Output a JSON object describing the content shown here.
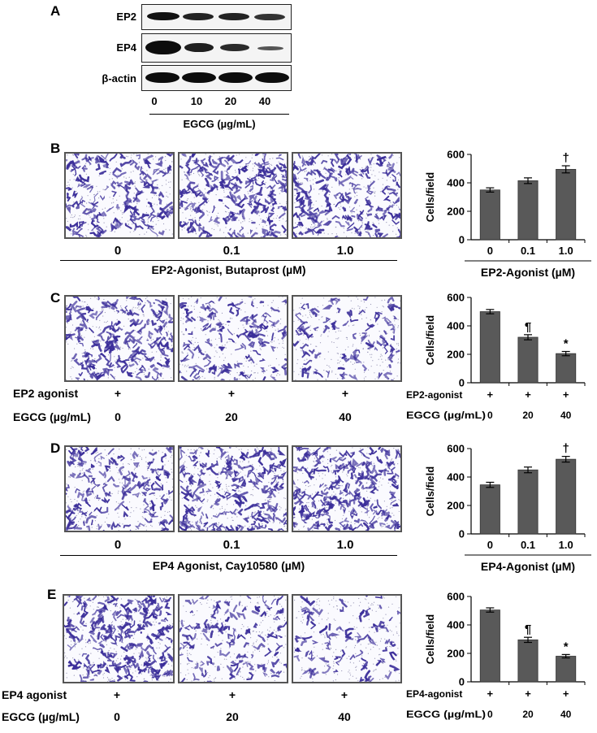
{
  "panel_letters": {
    "a": "A",
    "b": "B",
    "c": "C",
    "d": "D",
    "e": "E"
  },
  "panel_a": {
    "rows": [
      "EP2",
      "EP4",
      "β-actin"
    ],
    "lanes": [
      "0",
      "10",
      "20",
      "40"
    ],
    "treatment": "EGCG (µg/mL)"
  },
  "panel_b": {
    "image_labels": [
      "0",
      "0.1",
      "1.0"
    ],
    "caption": "EP2-Agonist,  Butaprost (µM)"
  },
  "panel_c": {
    "row1_label": "EP2 agonist",
    "row1_values": [
      "+",
      "+",
      "+"
    ],
    "row2_label": "EGCG (µg/mL)",
    "row2_values": [
      "0",
      "20",
      "40"
    ]
  },
  "panel_d": {
    "image_labels": [
      "0",
      "0.1",
      "1.0"
    ],
    "caption": "EP4 Agonist, Cay10580  (µM)"
  },
  "panel_e": {
    "row1_label": "EP4 agonist",
    "row1_values": [
      "+",
      "+",
      "+"
    ],
    "row2_label": "EGCG (µg/mL)",
    "row2_values": [
      "0",
      "20",
      "40"
    ]
  },
  "colors": {
    "bar": "#595959",
    "stain": "#3b2e9a"
  },
  "chart_data": [
    {
      "panel": "B",
      "type": "bar",
      "categories": [
        "0",
        "0.1",
        "1.0"
      ],
      "values": [
        350,
        415,
        495
      ],
      "errors": [
        15,
        20,
        25
      ],
      "annotations": [
        "",
        "",
        "†"
      ],
      "ylabel": "Cells/field",
      "xlabel": "EP2-Agonist (µM)",
      "ylim": [
        0,
        600
      ],
      "yticks": [
        "0",
        "200",
        "400",
        "600"
      ]
    },
    {
      "panel": "C",
      "type": "bar",
      "categories": [
        "0",
        "20",
        "40"
      ],
      "values": [
        500,
        320,
        205
      ],
      "errors": [
        15,
        18,
        15
      ],
      "annotations": [
        "",
        "¶",
        "*"
      ],
      "ylabel": "Cells/field",
      "xlabel": "",
      "ylim": [
        0,
        600
      ],
      "yticks": [
        "0",
        "200",
        "400",
        "600"
      ],
      "row1_label": "EP2-agonist",
      "row1_values": [
        "+",
        "+",
        "+"
      ],
      "row2_label": "EGCG (µg/mL)",
      "row2_values": [
        "0",
        "20",
        "40"
      ]
    },
    {
      "panel": "D",
      "type": "bar",
      "categories": [
        "0",
        "0.1",
        "1.0"
      ],
      "values": [
        345,
        450,
        525
      ],
      "errors": [
        18,
        20,
        20
      ],
      "annotations": [
        "",
        "",
        "†"
      ],
      "ylabel": "Cells/field",
      "xlabel": "EP4-Agonist (µM)",
      "ylim": [
        0,
        600
      ],
      "yticks": [
        "0",
        "200",
        "400",
        "600"
      ]
    },
    {
      "panel": "E",
      "type": "bar",
      "categories": [
        "0",
        "20",
        "40"
      ],
      "values": [
        505,
        295,
        180
      ],
      "errors": [
        15,
        18,
        12
      ],
      "annotations": [
        "",
        "¶",
        "*"
      ],
      "ylabel": "Cells/field",
      "xlabel": "",
      "ylim": [
        0,
        600
      ],
      "yticks": [
        "0",
        "200",
        "400",
        "600"
      ],
      "row1_label": "EP4-agonist",
      "row1_values": [
        "+",
        "+",
        "+"
      ],
      "row2_label": "EGCG (µg/mL)",
      "row2_values": [
        "0",
        "20",
        "40"
      ]
    }
  ]
}
